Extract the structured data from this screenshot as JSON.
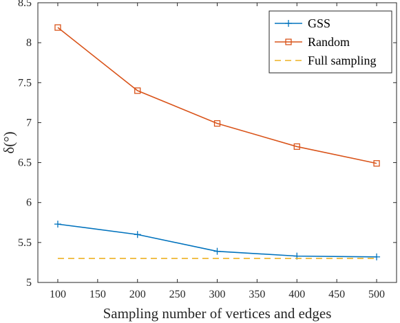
{
  "chart_data": {
    "type": "line",
    "title": "",
    "xlabel": "Sampling number of vertices and edges",
    "ylabel": "δ(°)",
    "x": [
      100,
      200,
      300,
      400,
      500
    ],
    "xlim": [
      75,
      525
    ],
    "ylim": [
      5,
      8.5
    ],
    "xticks": [
      "100",
      "150",
      "200",
      "250",
      "300",
      "350",
      "400",
      "450",
      "500"
    ],
    "yticks": [
      "5",
      "5.5",
      "6",
      "6.5",
      "7",
      "7.5",
      "8",
      "8.5"
    ],
    "grid": false,
    "box": true,
    "legend_position": "top-right",
    "series": [
      {
        "name": "GSS",
        "values": [
          5.73,
          5.6,
          5.39,
          5.33,
          5.32
        ],
        "color": "#0072bd",
        "marker": "plus",
        "style": "solid"
      },
      {
        "name": "Random",
        "values": [
          8.19,
          7.4,
          6.99,
          6.7,
          6.49
        ],
        "color": "#d95319",
        "marker": "square",
        "style": "solid"
      },
      {
        "name": "Full sampling",
        "values": [
          5.3,
          5.3,
          5.3,
          5.3,
          5.3
        ],
        "color": "#edb120",
        "marker": "none",
        "style": "dashed"
      }
    ]
  }
}
